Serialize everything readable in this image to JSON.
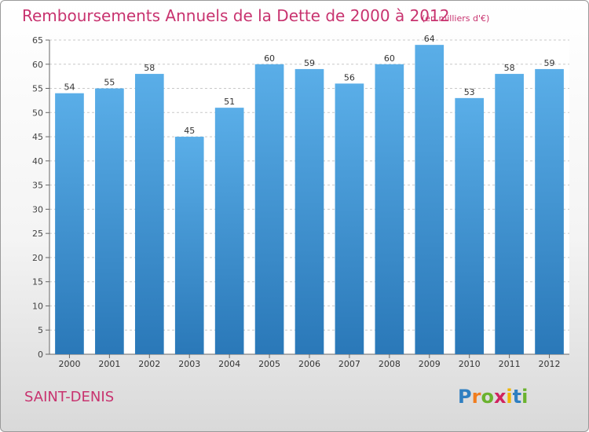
{
  "title": "Remboursements Annuels de la Dette de 2000 à 2012",
  "subtitle": "(en milliers d'€)",
  "commune": "SAINT-DENIS",
  "logo": {
    "text": "Proxiti",
    "letters": [
      {
        "ch": "P",
        "color": "#2f7fc1"
      },
      {
        "ch": "r",
        "color": "#f07d1f"
      },
      {
        "ch": "o",
        "color": "#6ab22e"
      },
      {
        "ch": "x",
        "color": "#d0235f"
      },
      {
        "ch": "i",
        "color": "#f0b400"
      },
      {
        "ch": "t",
        "color": "#2f7fc1"
      },
      {
        "ch": "i",
        "color": "#6ab22e"
      }
    ]
  },
  "colors": {
    "bar_top": "#5aaee8",
    "bar_bottom": "#2a78b8",
    "grid": "#c8c8c8",
    "accent": "#c8336f"
  },
  "chart_data": {
    "type": "bar",
    "categories": [
      "2000",
      "2001",
      "2002",
      "2003",
      "2004",
      "2005",
      "2006",
      "2007",
      "2008",
      "2009",
      "2010",
      "2011",
      "2012"
    ],
    "values": [
      54,
      55,
      58,
      45,
      51,
      60,
      59,
      56,
      60,
      64,
      53,
      58,
      59
    ],
    "ylim": [
      0,
      65
    ],
    "yticks": [
      0,
      5,
      10,
      15,
      20,
      25,
      30,
      35,
      40,
      45,
      50,
      55,
      60,
      65
    ],
    "grid": true,
    "legend": "none"
  }
}
